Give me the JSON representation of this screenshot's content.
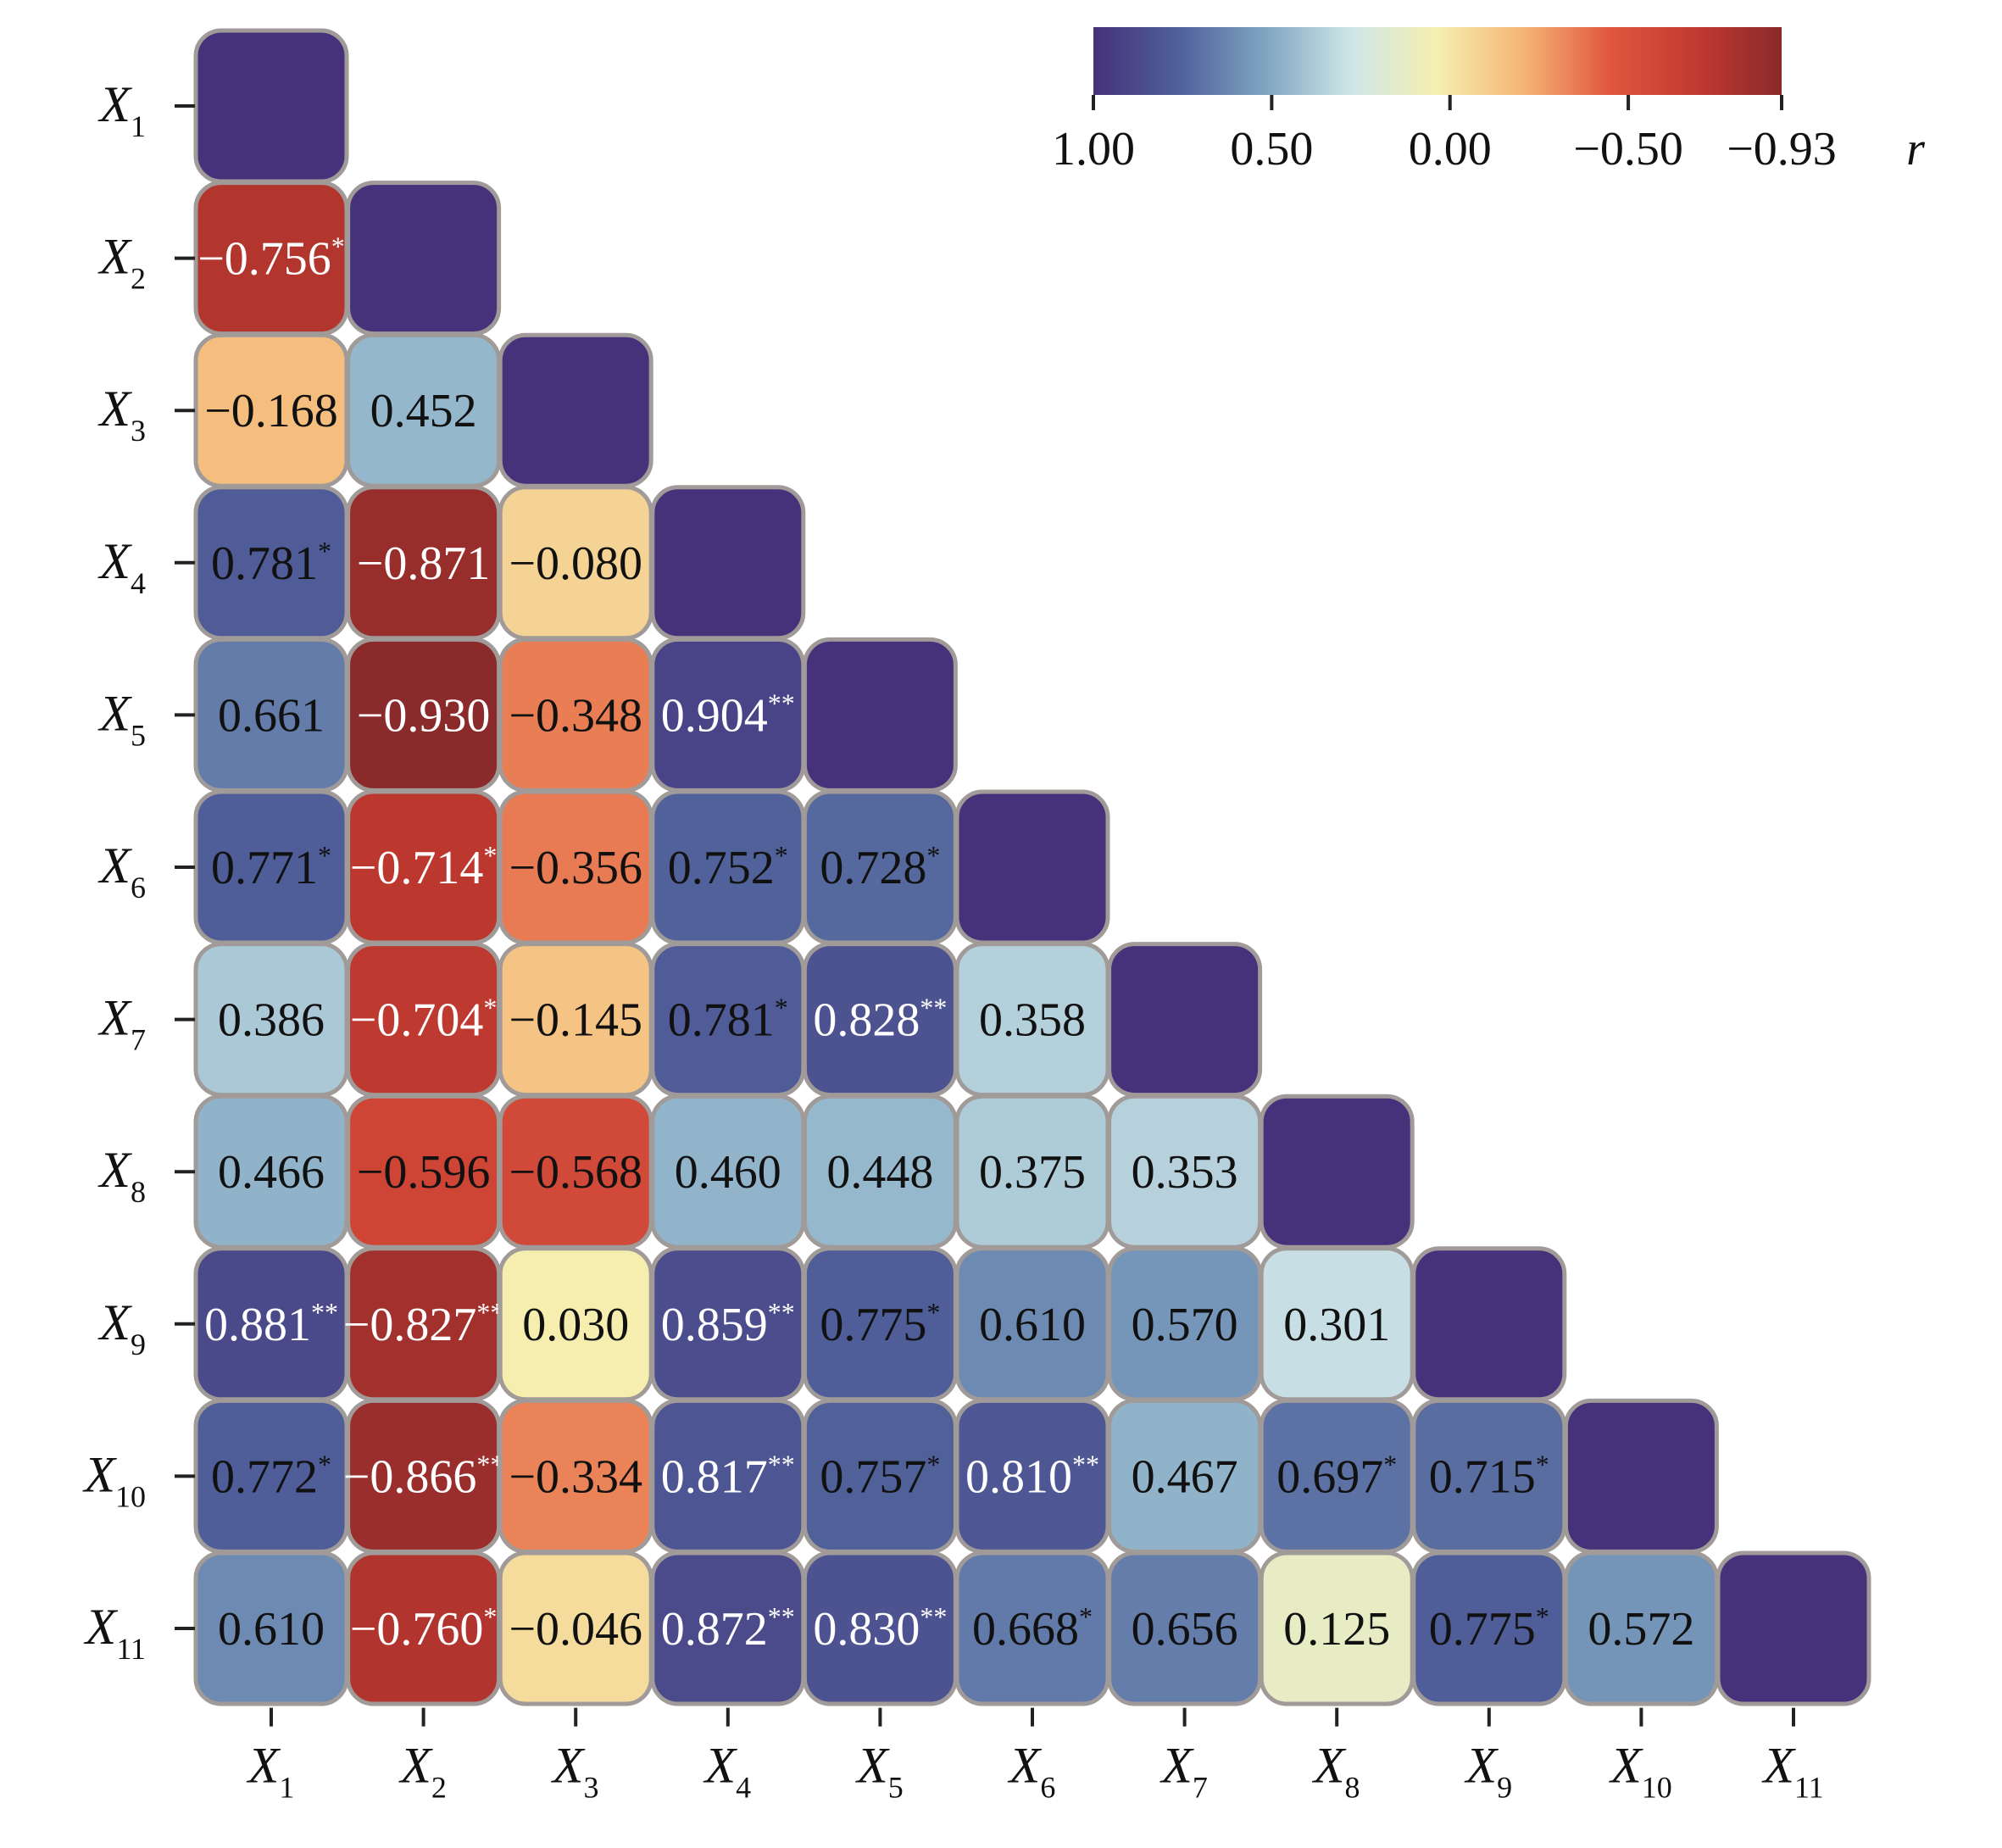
{
  "chart_data": {
    "type": "heatmap",
    "variables": [
      "X1",
      "X2",
      "X3",
      "X4",
      "X5",
      "X6",
      "X7",
      "X8",
      "X9",
      "X10",
      "X11"
    ],
    "labels": [
      {
        "base": "X",
        "sub": "1"
      },
      {
        "base": "X",
        "sub": "2"
      },
      {
        "base": "X",
        "sub": "3"
      },
      {
        "base": "X",
        "sub": "4"
      },
      {
        "base": "X",
        "sub": "5"
      },
      {
        "base": "X",
        "sub": "6"
      },
      {
        "base": "X",
        "sub": "7"
      },
      {
        "base": "X",
        "sub": "8"
      },
      {
        "base": "X",
        "sub": "9"
      },
      {
        "base": "X",
        "sub": "10"
      },
      {
        "base": "X",
        "sub": "11"
      }
    ],
    "matrix": [
      [
        {
          "v": 1
        }
      ],
      [
        {
          "v": -0.756,
          "t": "−0.756",
          "s": "*"
        },
        {
          "v": 1
        }
      ],
      [
        {
          "v": -0.168,
          "t": "−0.168",
          "s": ""
        },
        {
          "v": 0.452,
          "t": "0.452",
          "s": ""
        },
        {
          "v": 1
        }
      ],
      [
        {
          "v": 0.781,
          "t": "0.781",
          "s": "*"
        },
        {
          "v": -0.871,
          "t": "−0.871",
          "s": ""
        },
        {
          "v": -0.08,
          "t": "−0.080",
          "s": ""
        },
        {
          "v": 1
        }
      ],
      [
        {
          "v": 0.661,
          "t": "0.661",
          "s": ""
        },
        {
          "v": -0.93,
          "t": "−0.930",
          "s": ""
        },
        {
          "v": -0.348,
          "t": "−0.348",
          "s": ""
        },
        {
          "v": 0.904,
          "t": "0.904",
          "s": "**"
        },
        {
          "v": 1
        }
      ],
      [
        {
          "v": 0.771,
          "t": "0.771",
          "s": "*"
        },
        {
          "v": -0.714,
          "t": "−0.714",
          "s": "*"
        },
        {
          "v": -0.356,
          "t": "−0.356",
          "s": ""
        },
        {
          "v": 0.752,
          "t": "0.752",
          "s": "*"
        },
        {
          "v": 0.728,
          "t": "0.728",
          "s": "*"
        },
        {
          "v": 1
        }
      ],
      [
        {
          "v": 0.386,
          "t": "0.386",
          "s": ""
        },
        {
          "v": -0.704,
          "t": "−0.704",
          "s": "*"
        },
        {
          "v": -0.145,
          "t": "−0.145",
          "s": ""
        },
        {
          "v": 0.781,
          "t": "0.781",
          "s": "*"
        },
        {
          "v": 0.828,
          "t": "0.828",
          "s": "**"
        },
        {
          "v": 0.358,
          "t": "0.358",
          "s": ""
        },
        {
          "v": 1
        }
      ],
      [
        {
          "v": 0.466,
          "t": "0.466",
          "s": ""
        },
        {
          "v": -0.596,
          "t": "−0.596",
          "s": ""
        },
        {
          "v": -0.568,
          "t": "−0.568",
          "s": ""
        },
        {
          "v": 0.46,
          "t": "0.460",
          "s": ""
        },
        {
          "v": 0.448,
          "t": "0.448",
          "s": ""
        },
        {
          "v": 0.375,
          "t": "0.375",
          "s": ""
        },
        {
          "v": 0.353,
          "t": "0.353",
          "s": ""
        },
        {
          "v": 1
        }
      ],
      [
        {
          "v": 0.881,
          "t": "0.881",
          "s": "**"
        },
        {
          "v": -0.827,
          "t": "−0.827",
          "s": "**"
        },
        {
          "v": 0.03,
          "t": "0.030",
          "s": ""
        },
        {
          "v": 0.859,
          "t": "0.859",
          "s": "**"
        },
        {
          "v": 0.775,
          "t": "0.775",
          "s": "*"
        },
        {
          "v": 0.61,
          "t": "0.610",
          "s": ""
        },
        {
          "v": 0.57,
          "t": "0.570",
          "s": ""
        },
        {
          "v": 0.301,
          "t": "0.301",
          "s": ""
        },
        {
          "v": 1
        }
      ],
      [
        {
          "v": 0.772,
          "t": "0.772",
          "s": "*"
        },
        {
          "v": -0.866,
          "t": "−0.866",
          "s": "**"
        },
        {
          "v": -0.334,
          "t": "−0.334",
          "s": ""
        },
        {
          "v": 0.817,
          "t": "0.817",
          "s": "**"
        },
        {
          "v": 0.757,
          "t": "0.757",
          "s": "*"
        },
        {
          "v": 0.81,
          "t": "0.810",
          "s": "**"
        },
        {
          "v": 0.467,
          "t": "0.467",
          "s": ""
        },
        {
          "v": 0.697,
          "t": "0.697",
          "s": "*"
        },
        {
          "v": 0.715,
          "t": "0.715",
          "s": "*"
        },
        {
          "v": 1
        }
      ],
      [
        {
          "v": 0.61,
          "t": "0.610",
          "s": ""
        },
        {
          "v": -0.76,
          "t": "−0.760",
          "s": "*"
        },
        {
          "v": -0.046,
          "t": "−0.046",
          "s": ""
        },
        {
          "v": 0.872,
          "t": "0.872",
          "s": "**"
        },
        {
          "v": 0.83,
          "t": "0.830",
          "s": "**"
        },
        {
          "v": 0.668,
          "t": "0.668",
          "s": "*"
        },
        {
          "v": 0.656,
          "t": "0.656",
          "s": ""
        },
        {
          "v": 0.125,
          "t": "0.125",
          "s": ""
        },
        {
          "v": 0.775,
          "t": "0.775",
          "s": "*"
        },
        {
          "v": 0.572,
          "t": "0.572",
          "s": ""
        },
        {
          "v": 1
        }
      ]
    ],
    "colorbar": {
      "label": "r",
      "range": [
        1.0,
        -0.93
      ],
      "ticks": [
        {
          "value": 1.0,
          "label": "1.00"
        },
        {
          "value": 0.5,
          "label": "0.50"
        },
        {
          "value": 0.0,
          "label": "0.00"
        },
        {
          "value": -0.5,
          "label": "−0.50"
        },
        {
          "value": -0.93,
          "label": "−0.93"
        }
      ],
      "stops": [
        "#45327a",
        "#50609a",
        "#7fa5c1",
        "#cfe6e8",
        "#f5efb0",
        "#f5b575",
        "#e0573f",
        "#c23a30",
        "#8a2a2a"
      ]
    },
    "cell_border_color": "#a09a98",
    "light_text_color": "#ffffff",
    "dark_text_color": "#111111"
  }
}
